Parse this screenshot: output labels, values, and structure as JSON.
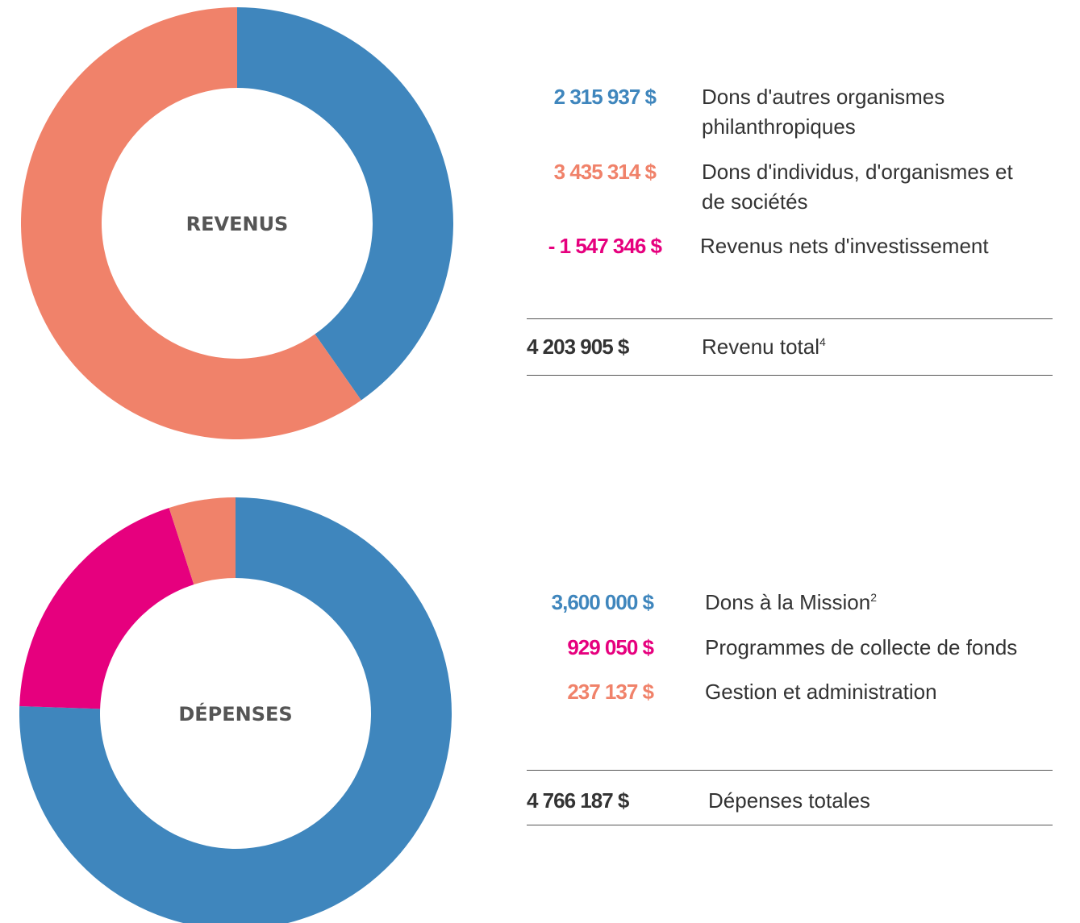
{
  "chart_data": [
    {
      "type": "pie",
      "title": "REVENUS",
      "categories": [
        "Dons d'autres organismes philanthropiques",
        "Dons d'individus, d'organismes et de sociétés",
        "Revenus nets d'investissement"
      ],
      "values": [
        2315937,
        3435314,
        -1547346
      ],
      "value_labels": [
        "2 315 937 $",
        "3 435 314 $",
        "- 1 547 346 $"
      ],
      "colors": [
        "#3f86bd",
        "#f0826a",
        "#e6007e"
      ],
      "total": {
        "value": 4203905,
        "label": "4 203 905 $",
        "name": "Revenu total",
        "note": "4"
      }
    },
    {
      "type": "pie",
      "title": "DÉPENSES",
      "categories": [
        "Dons à la Mission",
        "Programmes de collecte de fonds",
        "Gestion et administration"
      ],
      "category_notes": [
        "2",
        null,
        null
      ],
      "values": [
        3600000,
        929050,
        237137
      ],
      "value_labels": [
        "3,600 000 $",
        "929 050 $",
        "237 137 $"
      ],
      "colors": [
        "#3f86bd",
        "#e6007e",
        "#f0826a"
      ],
      "total": {
        "value": 4766187,
        "label": "4 766 187 $",
        "name": "Dépenses totales"
      }
    }
  ]
}
